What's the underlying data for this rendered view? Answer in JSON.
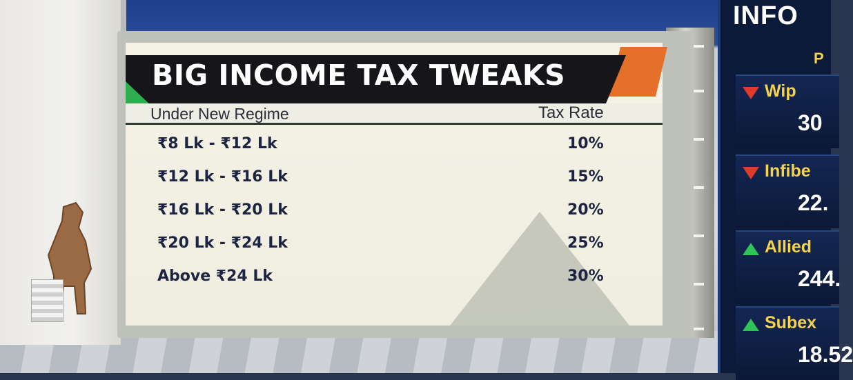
{
  "graphic": {
    "title": "BIG INCOME TAX TWEAKS",
    "column_left": "Under New Regime",
    "column_right": "Tax Rate",
    "rows": [
      {
        "slab": "₹8 Lk - ₹12 Lk",
        "rate": "10%"
      },
      {
        "slab": "₹12 Lk - ₹16 Lk",
        "rate": "15%"
      },
      {
        "slab": "₹16 Lk - ₹20 Lk",
        "rate": "20%"
      },
      {
        "slab": "₹20 Lk - ₹24 Lk",
        "rate": "25%"
      },
      {
        "slab": "Above ₹24 Lk",
        "rate": "30%"
      }
    ],
    "colors": {
      "header": "#15151a",
      "accent": "#e4702a",
      "tab": "#2fae4f",
      "text": "#1d2340"
    }
  },
  "ticker": {
    "title": "INFO",
    "sub": "P",
    "items": [
      {
        "name": "Wip",
        "price": "30",
        "direction": "down"
      },
      {
        "name": "Infibe",
        "price": "22.",
        "direction": "down"
      },
      {
        "name": "Allied",
        "price": "244.",
        "direction": "up"
      },
      {
        "name": "Subex",
        "price": "18.52",
        "direction": "up"
      }
    ]
  }
}
